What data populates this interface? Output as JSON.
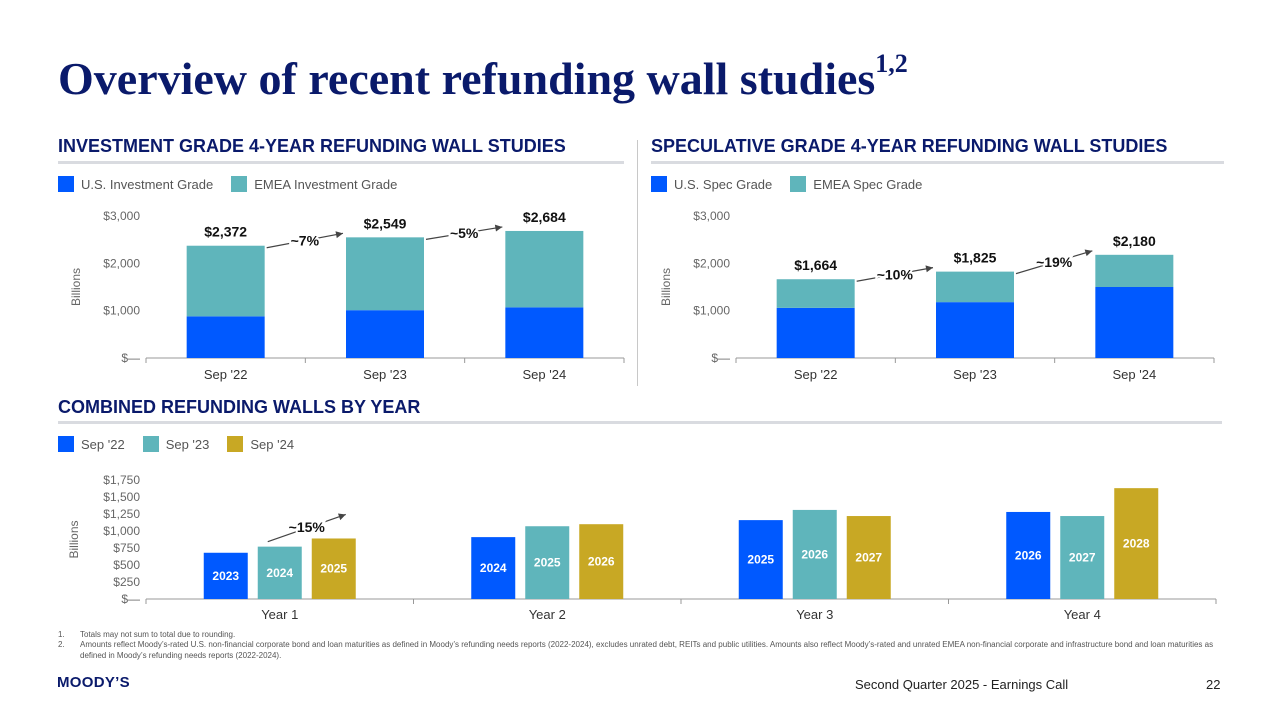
{
  "title": "Overview of recent refunding wall studies",
  "title_superscript": "1,2",
  "colors": {
    "navy": "#0a1a6b",
    "blue": "#0059ff",
    "teal": "#5fb5bb",
    "gold": "#c8a824",
    "rule": "#d9dbe0"
  },
  "chart_data": [
    {
      "id": "ig",
      "type": "bar",
      "stacked": true,
      "title": "INVESTMENT GRADE 4-YEAR REFUNDING WALL STUDIES",
      "ylabel": "Billions",
      "categories": [
        "Sep '22",
        "Sep '23",
        "Sep '24"
      ],
      "series": [
        {
          "name": "U.S. Investment Grade",
          "color": "#0059ff",
          "values": [
            880,
            1010,
            1070
          ]
        },
        {
          "name": "EMEA Investment Grade",
          "color": "#5fb5bb",
          "values": [
            1492,
            1539,
            1614
          ]
        }
      ],
      "totals": [
        2372,
        2549,
        2684
      ],
      "total_labels": [
        "$2,372",
        "$2,549",
        "$2,684"
      ],
      "growth_labels": [
        "~7%",
        "~5%"
      ],
      "ylim": [
        0,
        3000
      ],
      "yticks": [
        0,
        1000,
        2000,
        3000
      ],
      "ytick_labels": [
        "$—",
        "$1,000",
        "$2,000",
        "$3,000"
      ],
      "legend": "top-left"
    },
    {
      "id": "sg",
      "type": "bar",
      "stacked": true,
      "title": "SPECULATIVE GRADE 4-YEAR REFUNDING WALL STUDIES",
      "ylabel": "Billions",
      "categories": [
        "Sep '22",
        "Sep '23",
        "Sep '24"
      ],
      "series": [
        {
          "name": "U.S. Spec Grade",
          "color": "#0059ff",
          "values": [
            1060,
            1180,
            1500
          ]
        },
        {
          "name": "EMEA Spec Grade",
          "color": "#5fb5bb",
          "values": [
            604,
            645,
            680
          ]
        }
      ],
      "totals": [
        1664,
        1825,
        2180
      ],
      "total_labels": [
        "$1,664",
        "$1,825",
        "$2,180"
      ],
      "growth_labels": [
        "~10%",
        "~19%"
      ],
      "ylim": [
        0,
        3000
      ],
      "yticks": [
        0,
        1000,
        2000,
        3000
      ],
      "ytick_labels": [
        "$—",
        "$1,000",
        "$2,000",
        "$3,000"
      ],
      "legend": "top-left"
    },
    {
      "id": "combined",
      "type": "bar",
      "stacked": false,
      "title": "COMBINED REFUNDING WALLS BY YEAR",
      "ylabel": "Billions",
      "categories": [
        "Year 1",
        "Year 2",
        "Year 3",
        "Year 4"
      ],
      "series": [
        {
          "name": "Sep '22",
          "color": "#0059ff",
          "values": [
            680,
            910,
            1160,
            1280
          ],
          "bar_labels": [
            "2023",
            "2024",
            "2025",
            "2026"
          ]
        },
        {
          "name": "Sep '23",
          "color": "#5fb5bb",
          "values": [
            770,
            1070,
            1310,
            1220
          ],
          "bar_labels": [
            "2024",
            "2025",
            "2026",
            "2027"
          ]
        },
        {
          "name": "Sep '24",
          "color": "#c8a824",
          "values": [
            890,
            1100,
            1220,
            1630
          ],
          "bar_labels": [
            "2025",
            "2026",
            "2027",
            "2028"
          ]
        }
      ],
      "growth_label": "~15%",
      "ylim": [
        0,
        1750
      ],
      "yticks": [
        0,
        250,
        500,
        750,
        1000,
        1250,
        1500,
        1750
      ],
      "ytick_labels": [
        "$—",
        "$250",
        "$500",
        "$750",
        "$1,000",
        "$1,250",
        "$1,500",
        "$1,750"
      ],
      "legend": "top-left"
    }
  ],
  "footnotes": [
    {
      "num": "1.",
      "text": "Totals may not sum to total due to rounding."
    },
    {
      "num": "2.",
      "text": "Amounts reflect Moody’s-rated U.S. non-financial corporate bond and loan maturities as defined in Moody’s refunding needs reports (2022-2024), excludes unrated debt, REITs and public utilities. Amounts also reflect Moody’s-rated and unrated EMEA non-financial corporate and infrastructure bond and loan maturities as defined in Moody’s refunding needs reports (2022-2024)."
    }
  ],
  "footer": {
    "logo": "MOODY’S",
    "event": "Second Quarter 2025 - Earnings Call",
    "page": "22"
  }
}
